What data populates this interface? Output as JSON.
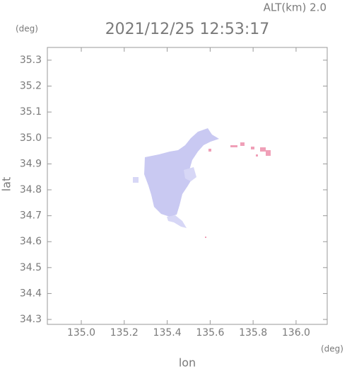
{
  "chart_data": {
    "type": "map",
    "title": "2021/12/25 12:53:17",
    "annotation": "ALT(km) 2.0",
    "xlabel": "lon",
    "ylabel": "lat",
    "x_unit": "(deg)",
    "y_unit": "(deg)",
    "xlim": [
      134.842,
      136.145
    ],
    "ylim": [
      34.281,
      35.349
    ],
    "xticks": [
      {
        "value": 135.0,
        "label": "135.0"
      },
      135.2,
      135.4,
      135.6,
      135.8,
      {
        "value": 136.0,
        "label": "136.0"
      }
    ],
    "yticks": [
      34.3,
      34.4,
      34.5,
      34.6,
      34.7,
      34.8,
      34.9,
      {
        "value": 35.0,
        "label": "35.0"
      },
      35.1,
      35.2,
      35.3
    ],
    "color": "#7a7a7a"
  }
}
